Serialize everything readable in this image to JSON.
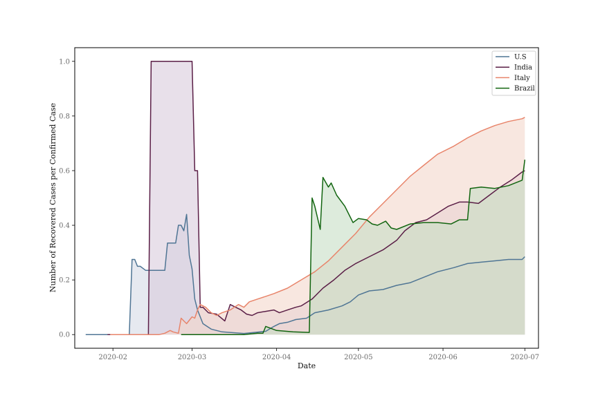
{
  "chart_data": {
    "type": "area",
    "title": "",
    "xlabel": "Date",
    "ylabel": "Number of Recovered Cases per Confirmed Case",
    "xlim": [
      "2020-01-18",
      "2020-07-06"
    ],
    "ylim": [
      -0.05,
      1.05
    ],
    "x_ticks": [
      "2020-02-01",
      "2020-03-01",
      "2020-04-01",
      "2020-05-01",
      "2020-06-01",
      "2020-07-01"
    ],
    "x_tick_labels": [
      "2020-02",
      "2020-03",
      "2020-04",
      "2020-05",
      "2020-06",
      "2020-07"
    ],
    "y_ticks": [
      0.0,
      0.2,
      0.4,
      0.6,
      0.8,
      1.0
    ],
    "y_tick_labels": [
      "0.0",
      "0.2",
      "0.4",
      "0.6",
      "0.8",
      "1.0"
    ],
    "grid": false,
    "legend_position": "top-right",
    "series": [
      {
        "name": "U.S",
        "color": "#4f7594",
        "fill": "#d5dbe6",
        "points": [
          [
            "2020-01-22",
            0
          ],
          [
            "2020-01-30",
            0
          ],
          [
            "2020-02-07",
            0
          ],
          [
            "2020-02-08",
            0.275
          ],
          [
            "2020-02-09",
            0.275
          ],
          [
            "2020-02-10",
            0.25
          ],
          [
            "2020-02-11",
            0.25
          ],
          [
            "2020-02-13",
            0.235
          ],
          [
            "2020-02-20",
            0.235
          ],
          [
            "2020-02-21",
            0.335
          ],
          [
            "2020-02-24",
            0.335
          ],
          [
            "2020-02-25",
            0.4
          ],
          [
            "2020-02-26",
            0.4
          ],
          [
            "2020-02-27",
            0.38
          ],
          [
            "2020-02-28",
            0.44
          ],
          [
            "2020-02-29",
            0.29
          ],
          [
            "2020-03-01",
            0.24
          ],
          [
            "2020-03-02",
            0.13
          ],
          [
            "2020-03-03",
            0.09
          ],
          [
            "2020-03-05",
            0.04
          ],
          [
            "2020-03-08",
            0.02
          ],
          [
            "2020-03-12",
            0.01
          ],
          [
            "2020-03-20",
            0.004
          ],
          [
            "2020-03-28",
            0.012
          ],
          [
            "2020-03-31",
            0.03
          ],
          [
            "2020-04-02",
            0.04
          ],
          [
            "2020-04-05",
            0.045
          ],
          [
            "2020-04-08",
            0.055
          ],
          [
            "2020-04-12",
            0.06
          ],
          [
            "2020-04-15",
            0.08
          ],
          [
            "2020-04-20",
            0.09
          ],
          [
            "2020-04-25",
            0.105
          ],
          [
            "2020-04-28",
            0.12
          ],
          [
            "2020-05-01",
            0.145
          ],
          [
            "2020-05-05",
            0.16
          ],
          [
            "2020-05-10",
            0.165
          ],
          [
            "2020-05-15",
            0.18
          ],
          [
            "2020-05-20",
            0.19
          ],
          [
            "2020-05-25",
            0.21
          ],
          [
            "2020-05-30",
            0.23
          ],
          [
            "2020-06-05",
            0.245
          ],
          [
            "2020-06-10",
            0.26
          ],
          [
            "2020-06-15",
            0.265
          ],
          [
            "2020-06-20",
            0.27
          ],
          [
            "2020-06-25",
            0.275
          ],
          [
            "2020-06-30",
            0.275
          ],
          [
            "2020-07-01",
            0.285
          ]
        ]
      },
      {
        "name": "India",
        "color": "#5a1e46",
        "fill": "#d8ccdc",
        "points": [
          [
            "2020-01-30",
            0
          ],
          [
            "2020-02-14",
            0
          ],
          [
            "2020-02-15",
            1.0
          ],
          [
            "2020-03-01",
            1.0
          ],
          [
            "2020-03-02",
            0.6
          ],
          [
            "2020-03-03",
            0.6
          ],
          [
            "2020-03-04",
            0.1
          ],
          [
            "2020-03-05",
            0.1
          ],
          [
            "2020-03-07",
            0.08
          ],
          [
            "2020-03-10",
            0.075
          ],
          [
            "2020-03-13",
            0.05
          ],
          [
            "2020-03-15",
            0.11
          ],
          [
            "2020-03-17",
            0.1
          ],
          [
            "2020-03-19",
            0.09
          ],
          [
            "2020-03-21",
            0.075
          ],
          [
            "2020-03-23",
            0.07
          ],
          [
            "2020-03-25",
            0.08
          ],
          [
            "2020-03-28",
            0.085
          ],
          [
            "2020-03-31",
            0.09
          ],
          [
            "2020-04-02",
            0.08
          ],
          [
            "2020-04-05",
            0.09
          ],
          [
            "2020-04-08",
            0.1
          ],
          [
            "2020-04-10",
            0.105
          ],
          [
            "2020-04-14",
            0.13
          ],
          [
            "2020-04-18",
            0.17
          ],
          [
            "2020-04-22",
            0.2
          ],
          [
            "2020-04-26",
            0.235
          ],
          [
            "2020-04-30",
            0.26
          ],
          [
            "2020-05-05",
            0.285
          ],
          [
            "2020-05-10",
            0.31
          ],
          [
            "2020-05-15",
            0.345
          ],
          [
            "2020-05-18",
            0.38
          ],
          [
            "2020-05-22",
            0.41
          ],
          [
            "2020-05-26",
            0.42
          ],
          [
            "2020-05-30",
            0.445
          ],
          [
            "2020-06-03",
            0.47
          ],
          [
            "2020-06-07",
            0.485
          ],
          [
            "2020-06-10",
            0.485
          ],
          [
            "2020-06-14",
            0.48
          ],
          [
            "2020-06-18",
            0.51
          ],
          [
            "2020-06-22",
            0.54
          ],
          [
            "2020-06-26",
            0.565
          ],
          [
            "2020-06-30",
            0.595
          ],
          [
            "2020-07-01",
            0.6
          ]
        ]
      },
      {
        "name": "Italy",
        "color": "#e8846a",
        "fill": "#f4d7cb",
        "points": [
          [
            "2020-01-31",
            0
          ],
          [
            "2020-02-18",
            0
          ],
          [
            "2020-02-20",
            0.005
          ],
          [
            "2020-02-22",
            0.015
          ],
          [
            "2020-02-23",
            0.01
          ],
          [
            "2020-02-25",
            0.005
          ],
          [
            "2020-02-26",
            0.06
          ],
          [
            "2020-02-27",
            0.05
          ],
          [
            "2020-02-28",
            0.04
          ],
          [
            "2020-03-01",
            0.065
          ],
          [
            "2020-03-02",
            0.06
          ],
          [
            "2020-03-03",
            0.09
          ],
          [
            "2020-03-04",
            0.11
          ],
          [
            "2020-03-06",
            0.1
          ],
          [
            "2020-03-08",
            0.08
          ],
          [
            "2020-03-10",
            0.07
          ],
          [
            "2020-03-12",
            0.08
          ],
          [
            "2020-03-15",
            0.09
          ],
          [
            "2020-03-18",
            0.11
          ],
          [
            "2020-03-20",
            0.1
          ],
          [
            "2020-03-22",
            0.12
          ],
          [
            "2020-03-25",
            0.13
          ],
          [
            "2020-03-28",
            0.14
          ],
          [
            "2020-03-31",
            0.15
          ],
          [
            "2020-04-05",
            0.17
          ],
          [
            "2020-04-10",
            0.2
          ],
          [
            "2020-04-15",
            0.23
          ],
          [
            "2020-04-20",
            0.27
          ],
          [
            "2020-04-25",
            0.32
          ],
          [
            "2020-04-30",
            0.37
          ],
          [
            "2020-05-05",
            0.43
          ],
          [
            "2020-05-10",
            0.48
          ],
          [
            "2020-05-15",
            0.53
          ],
          [
            "2020-05-20",
            0.58
          ],
          [
            "2020-05-25",
            0.62
          ],
          [
            "2020-05-30",
            0.66
          ],
          [
            "2020-06-05",
            0.69
          ],
          [
            "2020-06-10",
            0.72
          ],
          [
            "2020-06-15",
            0.745
          ],
          [
            "2020-06-20",
            0.765
          ],
          [
            "2020-06-25",
            0.78
          ],
          [
            "2020-06-30",
            0.79
          ],
          [
            "2020-07-01",
            0.795
          ]
        ]
      },
      {
        "name": "Brazil",
        "color": "#11640f",
        "fill": "#c7ddc5",
        "points": [
          [
            "2020-02-26",
            0
          ],
          [
            "2020-03-20",
            0
          ],
          [
            "2020-03-25",
            0.005
          ],
          [
            "2020-03-27",
            0.005
          ],
          [
            "2020-03-28",
            0.03
          ],
          [
            "2020-04-01",
            0.015
          ],
          [
            "2020-04-07",
            0.01
          ],
          [
            "2020-04-13",
            0.008
          ],
          [
            "2020-04-14",
            0.5
          ],
          [
            "2020-04-15",
            0.47
          ],
          [
            "2020-04-17",
            0.385
          ],
          [
            "2020-04-18",
            0.575
          ],
          [
            "2020-04-20",
            0.54
          ],
          [
            "2020-04-21",
            0.555
          ],
          [
            "2020-04-23",
            0.51
          ],
          [
            "2020-04-26",
            0.47
          ],
          [
            "2020-04-29",
            0.41
          ],
          [
            "2020-05-01",
            0.425
          ],
          [
            "2020-05-04",
            0.42
          ],
          [
            "2020-05-06",
            0.405
          ],
          [
            "2020-05-08",
            0.4
          ],
          [
            "2020-05-11",
            0.415
          ],
          [
            "2020-05-13",
            0.39
          ],
          [
            "2020-05-15",
            0.385
          ],
          [
            "2020-05-20",
            0.405
          ],
          [
            "2020-05-25",
            0.41
          ],
          [
            "2020-05-30",
            0.41
          ],
          [
            "2020-06-04",
            0.405
          ],
          [
            "2020-06-07",
            0.42
          ],
          [
            "2020-06-10",
            0.42
          ],
          [
            "2020-06-11",
            0.535
          ],
          [
            "2020-06-15",
            0.54
          ],
          [
            "2020-06-20",
            0.535
          ],
          [
            "2020-06-25",
            0.545
          ],
          [
            "2020-06-30",
            0.565
          ],
          [
            "2020-07-01",
            0.64
          ]
        ]
      }
    ]
  }
}
